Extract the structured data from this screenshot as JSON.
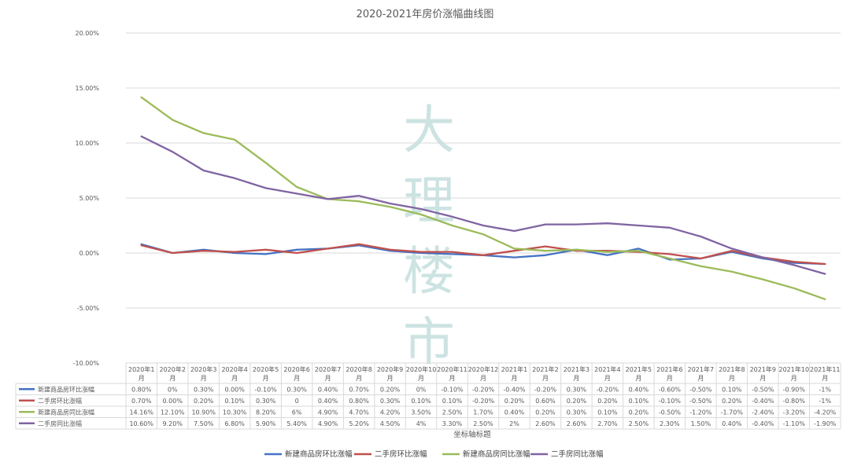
{
  "chart_data": {
    "type": "line",
    "title": "2020-2021年房价涨幅曲线图",
    "xlabel": "坐标轴标题",
    "ylabel": "",
    "ylim": [
      -10,
      20
    ],
    "y_ticks": [
      "20.00%",
      "15.00%",
      "10.00%",
      "5.00%",
      "0.00%",
      "-5.00%",
      "-10.00%"
    ],
    "y_tick_values": [
      20,
      15,
      10,
      5,
      0,
      -5,
      -10
    ],
    "grid": true,
    "legend_position": "bottom",
    "watermark": "大理楼市",
    "categories": [
      {
        "line1": "2020年1",
        "line2": "月"
      },
      {
        "line1": "2020年2",
        "line2": "月"
      },
      {
        "line1": "2020年3",
        "line2": "月"
      },
      {
        "line1": "2020年4",
        "line2": "月"
      },
      {
        "line1": "2020年5",
        "line2": "月"
      },
      {
        "line1": "2020年6",
        "line2": "月"
      },
      {
        "line1": "2020年7",
        "line2": "月"
      },
      {
        "line1": "2020年8",
        "line2": "月"
      },
      {
        "line1": "2020年9",
        "line2": "月"
      },
      {
        "line1": "2020年10",
        "line2": "月"
      },
      {
        "line1": "2020年11",
        "line2": "月"
      },
      {
        "line1": "2020年12",
        "line2": "月"
      },
      {
        "line1": "2021年1",
        "line2": "月"
      },
      {
        "line1": "2021年2",
        "line2": "月"
      },
      {
        "line1": "2021年3",
        "line2": "月"
      },
      {
        "line1": "2021年4",
        "line2": "月"
      },
      {
        "line1": "2021年5",
        "line2": "月"
      },
      {
        "line1": "2021年6",
        "line2": "月"
      },
      {
        "line1": "2021年7",
        "line2": "月"
      },
      {
        "line1": "2021年8",
        "line2": "月"
      },
      {
        "line1": "2021年9",
        "line2": "月"
      },
      {
        "line1": "2021年10",
        "line2": "月"
      },
      {
        "line1": "2021年11",
        "line2": "月"
      }
    ],
    "series": [
      {
        "name": "新建商品房环比涨幅",
        "color": "#4472c4",
        "values": [
          0.8,
          0,
          0.3,
          0,
          -0.1,
          0.3,
          0.4,
          0.7,
          0.2,
          0,
          -0.1,
          -0.2,
          -0.4,
          -0.2,
          0.3,
          -0.2,
          0.4,
          -0.6,
          -0.5,
          0.1,
          -0.5,
          -0.9,
          -1
        ],
        "labels": [
          "0.80%",
          "0%",
          "0.30%",
          "0.00%",
          "-0.10%",
          "0.30%",
          "0.40%",
          "0.70%",
          "0.20%",
          "0%",
          "-0.10%",
          "-0.20%",
          "-0.40%",
          "-0.20%",
          "0.30%",
          "-0.20%",
          "0.40%",
          "-0.60%",
          "-0.50%",
          "0.10%",
          "-0.50%",
          "-0.90%",
          "-1%"
        ]
      },
      {
        "name": "二手房环比涨幅",
        "color": "#c0504d",
        "values": [
          0.7,
          0,
          0.2,
          0.1,
          0.3,
          0,
          0.4,
          0.8,
          0.3,
          0.1,
          0.1,
          -0.2,
          0.2,
          0.6,
          0.2,
          0.2,
          0.1,
          -0.1,
          -0.5,
          0.2,
          -0.4,
          -0.8,
          -1
        ],
        "labels": [
          "0.70%",
          "0.00%",
          "0.20%",
          "0.10%",
          "0.30%",
          "0",
          "0.40%",
          "0.80%",
          "0.30%",
          "0.10%",
          "0.10%",
          "-0.20%",
          "0.20%",
          "0.60%",
          "0.20%",
          "0.20%",
          "0.10%",
          "-0.10%",
          "-0.50%",
          "0.20%",
          "-0.40%",
          "-0.80%",
          "-1%"
        ]
      },
      {
        "name": "新建商品房同比涨幅",
        "color": "#9bbb59",
        "values": [
          14.16,
          12.1,
          10.9,
          10.3,
          8.2,
          6,
          4.9,
          4.7,
          4.2,
          3.5,
          2.5,
          1.7,
          0.4,
          0.2,
          0.3,
          0.1,
          0.2,
          -0.5,
          -1.2,
          -1.7,
          -2.4,
          -3.2,
          -4.2
        ],
        "labels": [
          "14.16%",
          "12.10%",
          "10.90%",
          "10.30%",
          "8.20%",
          "6%",
          "4.90%",
          "4.70%",
          "4.20%",
          "3.50%",
          "2.50%",
          "1.70%",
          "0.40%",
          "0.20%",
          "0.30%",
          "0.10%",
          "0.20%",
          "-0.50%",
          "-1.20%",
          "-1.70%",
          "-2.40%",
          "-3.20%",
          "-4.20%"
        ]
      },
      {
        "name": "二手房同比涨幅",
        "color": "#8064a2",
        "values": [
          10.6,
          9.2,
          7.5,
          6.8,
          5.9,
          5.4,
          4.9,
          5.2,
          4.5,
          4,
          3.3,
          2.5,
          2,
          2.6,
          2.6,
          2.7,
          2.5,
          2.3,
          1.5,
          0.4,
          -0.4,
          -1.1,
          -1.9
        ],
        "labels": [
          "10.60%",
          "9.20%",
          "7.50%",
          "6.80%",
          "5.90%",
          "5.40%",
          "4.90%",
          "5.20%",
          "4.50%",
          "4%",
          "3.30%",
          "2.50%",
          "2%",
          "2.60%",
          "2.60%",
          "2.70%",
          "2.50%",
          "2.30%",
          "1.50%",
          "0.40%",
          "-0.40%",
          "-1.10%",
          "-1.90%"
        ]
      }
    ]
  }
}
